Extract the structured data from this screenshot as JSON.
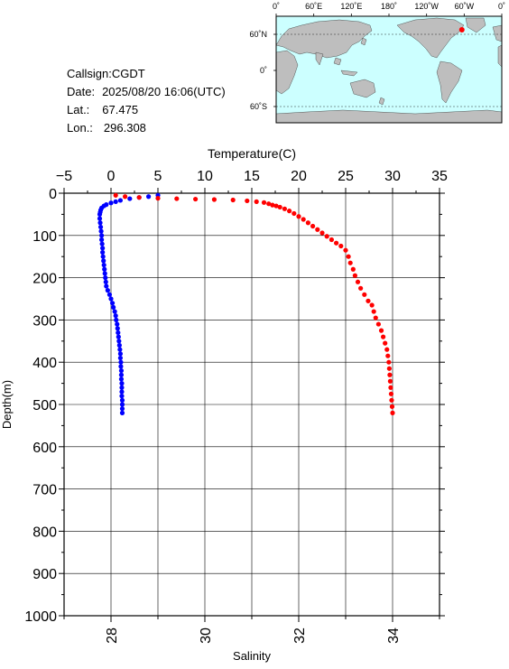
{
  "info": {
    "callsign_label": "Callsign:",
    "callsign": "CGDT",
    "date_label": "Date:",
    "date": "2025/08/20 16:06(UTC)",
    "lat_label": "Lat.:",
    "lat": "67.475",
    "lon_label": "Lon.:",
    "lon": "296.308"
  },
  "map": {
    "top_ticks": [
      "0˚",
      "60˚E",
      "120˚E",
      "180˚",
      "120˚W",
      "60˚W",
      "0˚"
    ],
    "lat_ticks": [
      "60˚N",
      "0˚",
      "60˚S"
    ],
    "ocean_color": "#ccffff",
    "land_color": "#bebebe",
    "marker_color": "#ff0000",
    "marker_lat": 67.475,
    "marker_lon": 296.308
  },
  "chart_data": {
    "type": "scatter",
    "y_axis": {
      "label": "Depth(m)",
      "range": [
        0,
        1000
      ],
      "ticks": [
        "0",
        "100",
        "200",
        "300",
        "400",
        "500",
        "600",
        "700",
        "800",
        "900",
        "1000"
      ],
      "reversed": true
    },
    "top_axis": {
      "label": "Temperature(C)",
      "range": [
        -5,
        35
      ],
      "ticks": [
        "−5",
        "0",
        "5",
        "10",
        "15",
        "20",
        "25",
        "30",
        "35"
      ]
    },
    "bottom_axis": {
      "label": "Salinity",
      "range": [
        27,
        35
      ],
      "ticks": [
        "28",
        "30",
        "32",
        "34"
      ]
    },
    "grid": true,
    "series": [
      {
        "quantity": "salinity",
        "color": "#0000ff",
        "points": [
          [
            29.0,
            5
          ],
          [
            28.8,
            8
          ],
          [
            28.6,
            10
          ],
          [
            28.4,
            13
          ],
          [
            28.2,
            17
          ],
          [
            28.1,
            20
          ],
          [
            28.0,
            23
          ],
          [
            27.9,
            27
          ],
          [
            27.85,
            30
          ],
          [
            27.8,
            35
          ],
          [
            27.78,
            40
          ],
          [
            27.77,
            45
          ],
          [
            27.76,
            50
          ],
          [
            27.76,
            60
          ],
          [
            27.77,
            70
          ],
          [
            27.78,
            80
          ],
          [
            27.79,
            90
          ],
          [
            27.8,
            100
          ],
          [
            27.8,
            110
          ],
          [
            27.81,
            120
          ],
          [
            27.82,
            130
          ],
          [
            27.82,
            140
          ],
          [
            27.83,
            150
          ],
          [
            27.84,
            160
          ],
          [
            27.85,
            170
          ],
          [
            27.86,
            180
          ],
          [
            27.87,
            190
          ],
          [
            27.88,
            200
          ],
          [
            27.89,
            210
          ],
          [
            27.9,
            220
          ],
          [
            27.93,
            230
          ],
          [
            27.97,
            240
          ],
          [
            28.0,
            250
          ],
          [
            28.03,
            260
          ],
          [
            28.05,
            270
          ],
          [
            28.08,
            280
          ],
          [
            28.1,
            290
          ],
          [
            28.11,
            300
          ],
          [
            28.13,
            310
          ],
          [
            28.14,
            320
          ],
          [
            28.15,
            330
          ],
          [
            28.16,
            340
          ],
          [
            28.17,
            350
          ],
          [
            28.18,
            360
          ],
          [
            28.19,
            370
          ],
          [
            28.2,
            380
          ],
          [
            28.2,
            390
          ],
          [
            28.21,
            400
          ],
          [
            28.21,
            410
          ],
          [
            28.22,
            420
          ],
          [
            28.22,
            430
          ],
          [
            28.22,
            440
          ],
          [
            28.23,
            450
          ],
          [
            28.23,
            460
          ],
          [
            28.23,
            470
          ],
          [
            28.23,
            480
          ],
          [
            28.24,
            490
          ],
          [
            28.24,
            500
          ],
          [
            28.24,
            510
          ],
          [
            28.24,
            520
          ]
        ]
      },
      {
        "quantity": "temperature",
        "color": "#ff0000",
        "points": [
          [
            0.5,
            5
          ],
          [
            1.5,
            8
          ],
          [
            3.0,
            10
          ],
          [
            5.0,
            12
          ],
          [
            7.0,
            13
          ],
          [
            9.0,
            14
          ],
          [
            11.0,
            15
          ],
          [
            13.0,
            16
          ],
          [
            14.5,
            18
          ],
          [
            15.5,
            20
          ],
          [
            16.3,
            22
          ],
          [
            16.8,
            25
          ],
          [
            17.2,
            28
          ],
          [
            17.6,
            30
          ],
          [
            18.0,
            33
          ],
          [
            18.5,
            37
          ],
          [
            19.0,
            42
          ],
          [
            19.5,
            48
          ],
          [
            20.0,
            55
          ],
          [
            20.5,
            62
          ],
          [
            21.0,
            70
          ],
          [
            21.5,
            78
          ],
          [
            22.0,
            86
          ],
          [
            22.5,
            94
          ],
          [
            23.0,
            102
          ],
          [
            23.5,
            110
          ],
          [
            24.0,
            118
          ],
          [
            24.5,
            125
          ],
          [
            25.0,
            135
          ],
          [
            25.3,
            150
          ],
          [
            25.5,
            165
          ],
          [
            25.8,
            180
          ],
          [
            26.0,
            195
          ],
          [
            26.3,
            210
          ],
          [
            26.6,
            225
          ],
          [
            27.0,
            240
          ],
          [
            27.4,
            255
          ],
          [
            27.8,
            265
          ],
          [
            28.0,
            280
          ],
          [
            28.2,
            295
          ],
          [
            28.5,
            310
          ],
          [
            28.8,
            325
          ],
          [
            29.0,
            340
          ],
          [
            29.2,
            355
          ],
          [
            29.4,
            370
          ],
          [
            29.5,
            385
          ],
          [
            29.6,
            400
          ],
          [
            29.65,
            415
          ],
          [
            29.7,
            430
          ],
          [
            29.75,
            445
          ],
          [
            29.8,
            460
          ],
          [
            29.85,
            475
          ],
          [
            29.9,
            490
          ],
          [
            29.95,
            505
          ],
          [
            30.0,
            520
          ]
        ]
      }
    ]
  }
}
